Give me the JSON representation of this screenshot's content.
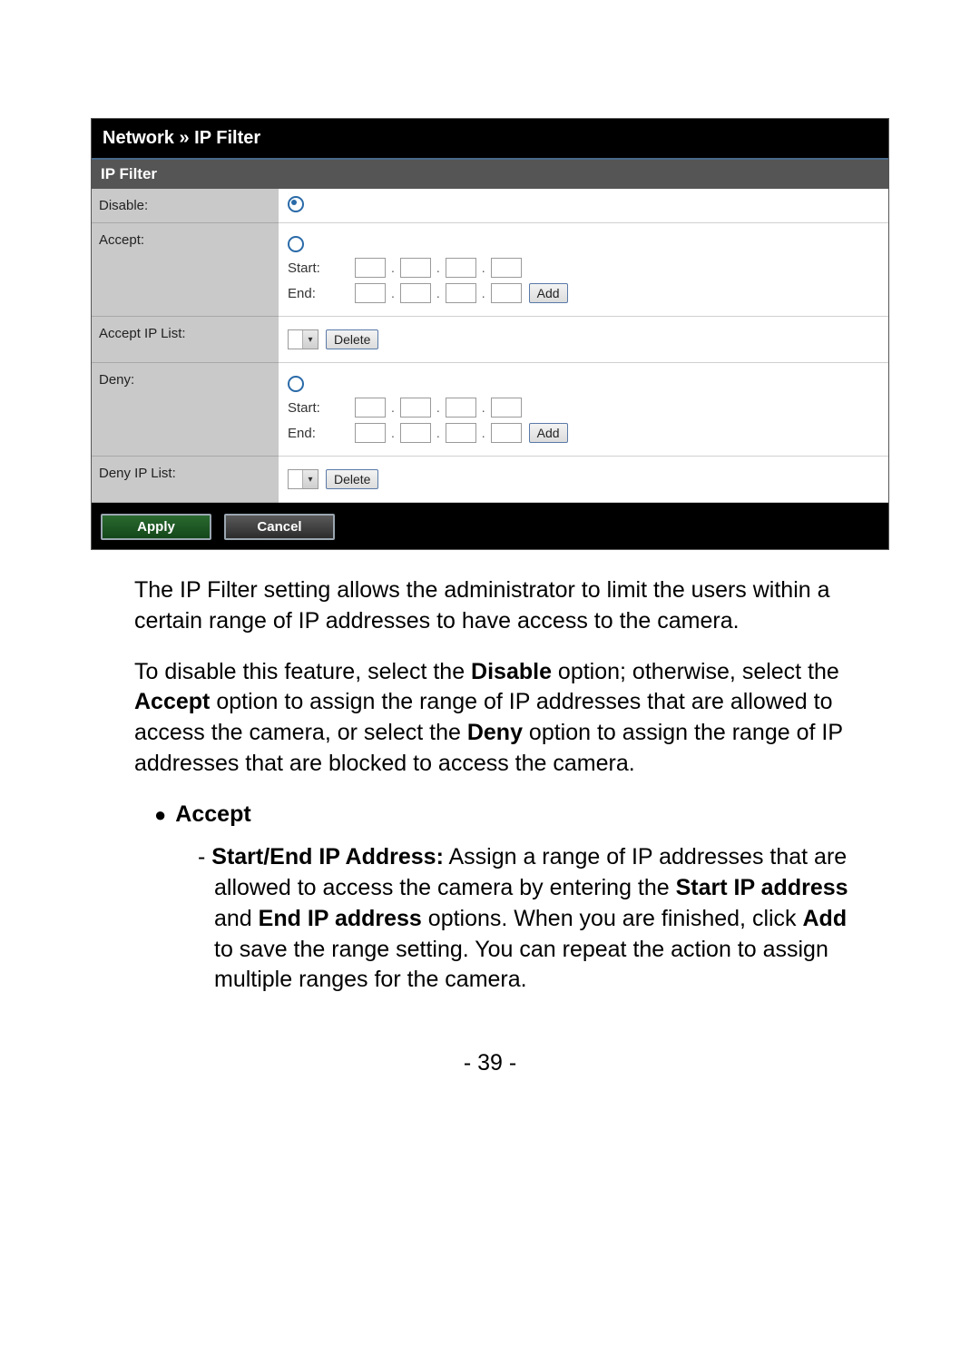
{
  "panel": {
    "title": "Network » IP Filter",
    "section_header": "IP Filter",
    "rows": {
      "disable_label": "Disable:",
      "accept_label": "Accept:",
      "accept_list_label": "Accept IP List:",
      "deny_label": "Deny:",
      "deny_list_label": "Deny IP List:"
    },
    "field_labels": {
      "start": "Start:",
      "end": "End:"
    },
    "buttons": {
      "add": "Add",
      "delete": "Delete",
      "apply": "Apply",
      "cancel": "Cancel"
    },
    "radio_selected": "disable",
    "colors": {
      "panel_bg": "#000000",
      "title_text": "#ffffff",
      "section_bg": "#555555",
      "label_bg": "#c9c9c9",
      "value_bg": "#ffffff",
      "radio_color": "#2a6aa8",
      "apply_bg": "#2a6a2f",
      "cancel_bg": "#5a5a5a"
    }
  },
  "doc": {
    "p1": "The IP Filter setting allows the administrator to limit the users within a certain range of IP addresses to have access to the camera.",
    "p2_prefix": "To disable this feature, select the ",
    "p2_bold1": "Disable",
    "p2_mid1": " option; otherwise, select the ",
    "p2_bold2": "Accept",
    "p2_mid2": " option to assign the range of IP addresses that are allowed to access the camera, or select the ",
    "p2_bold3": "Deny",
    "p2_suffix": " option to assign the range of IP addresses that are blocked to access the camera.",
    "bullet1": "Accept",
    "dash1_bold1": "Start/End IP Address:",
    "dash1_text1": " Assign a range of IP addresses that are allowed to access the camera by entering the ",
    "dash1_bold2": "Start IP address",
    "dash1_text2": " and ",
    "dash1_bold3": "End IP address",
    "dash1_text3": " options. When you are finished, click ",
    "dash1_bold4": "Add",
    "dash1_text4": " to save the range setting. You can repeat the action to assign multiple ranges for the camera.",
    "page_number": "- 39 -"
  }
}
